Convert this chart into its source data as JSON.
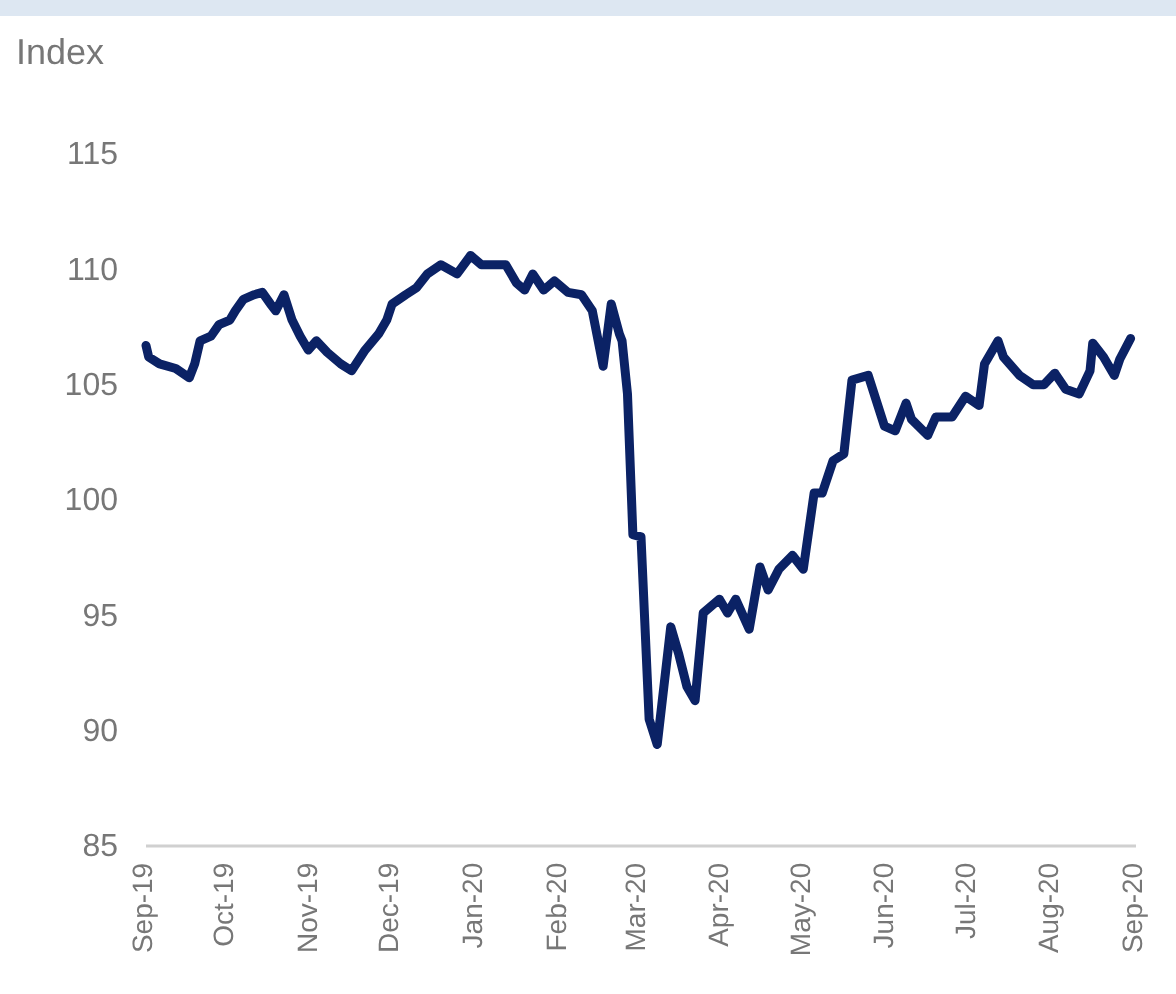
{
  "chart_data": {
    "type": "line",
    "ylabel": "Index",
    "x": [
      "2019-09-01",
      "2019-09-02",
      "2019-09-06",
      "2019-09-12",
      "2019-09-17",
      "2019-09-19",
      "2019-09-21",
      "2019-09-25",
      "2019-09-28",
      "2019-10-02",
      "2019-10-04",
      "2019-10-07",
      "2019-10-11",
      "2019-10-14",
      "2019-10-17",
      "2019-10-19",
      "2019-10-22",
      "2019-10-25",
      "2019-10-28",
      "2019-10-31",
      "2019-11-03",
      "2019-11-07",
      "2019-11-12",
      "2019-11-16",
      "2019-11-21",
      "2019-11-26",
      "2019-11-29",
      "2019-12-01",
      "2019-12-06",
      "2019-12-10",
      "2019-12-14",
      "2019-12-19",
      "2019-12-25",
      "2019-12-30",
      "2020-01-03",
      "2020-01-08",
      "2020-01-12",
      "2020-01-16",
      "2020-01-19",
      "2020-01-22",
      "2020-01-26",
      "2020-01-30",
      "2020-02-04",
      "2020-02-09",
      "2020-02-13",
      "2020-02-17",
      "2020-02-20",
      "2020-02-23",
      "2020-02-24",
      "2020-02-26",
      "2020-02-28",
      "2020-03-02",
      "2020-03-05",
      "2020-03-08",
      "2020-03-13",
      "2020-03-16",
      "2020-03-19",
      "2020-03-22",
      "2020-03-25",
      "2020-03-31",
      "2020-04-03",
      "2020-04-06",
      "2020-04-11",
      "2020-04-15",
      "2020-04-18",
      "2020-04-22",
      "2020-04-27",
      "2020-05-01",
      "2020-05-05",
      "2020-05-08",
      "2020-05-12",
      "2020-05-16",
      "2020-05-19",
      "2020-05-25",
      "2020-05-31",
      "2020-06-04",
      "2020-06-08",
      "2020-06-10",
      "2020-06-16",
      "2020-06-19",
      "2020-06-25",
      "2020-06-30",
      "2020-07-05",
      "2020-07-07",
      "2020-07-12",
      "2020-07-14",
      "2020-07-20",
      "2020-07-25",
      "2020-07-29",
      "2020-08-02",
      "2020-08-06",
      "2020-08-11",
      "2020-08-15",
      "2020-08-16",
      "2020-08-20",
      "2020-08-24",
      "2020-08-26",
      "2020-08-30"
    ],
    "series": [
      {
        "color": "#0b2265",
        "values": [
          106.7,
          106.2,
          105.9,
          105.7,
          105.3,
          105.9,
          106.9,
          107.1,
          107.6,
          107.8,
          108.2,
          108.7,
          108.9,
          109.0,
          108.5,
          108.2,
          108.9,
          107.8,
          107.1,
          106.5,
          106.9,
          106.4,
          105.9,
          105.6,
          106.5,
          107.2,
          107.8,
          108.5,
          108.9,
          109.2,
          109.8,
          110.2,
          109.8,
          110.6,
          110.2,
          110.2,
          110.2,
          109.4,
          109.1,
          109.8,
          109.1,
          109.5,
          109.0,
          108.9,
          108.2,
          105.8,
          108.5,
          107.2,
          106.9,
          104.6,
          98.5,
          98.4,
          90.5,
          89.4,
          94.5,
          93.3,
          91.9,
          91.3,
          95.1,
          95.7,
          95.1,
          95.7,
          94.4,
          97.1,
          96.1,
          97.0,
          97.6,
          97.0,
          100.3,
          100.3,
          101.7,
          102.0,
          105.2,
          105.4,
          103.2,
          103.0,
          104.2,
          103.5,
          102.8,
          103.6,
          103.6,
          104.5,
          104.1,
          105.9,
          106.9,
          106.2,
          105.4,
          105.0,
          105.0,
          105.5,
          104.8,
          104.6,
          105.6,
          106.8,
          106.2,
          105.4,
          106.1,
          107.0
        ]
      }
    ],
    "xlim": [
      "2019-09-01",
      "2020-09-01"
    ],
    "xticks": [
      {
        "value": "2019-09-01",
        "label": "Sep-19"
      },
      {
        "value": "2019-10-01",
        "label": "Oct-19"
      },
      {
        "value": "2019-11-01",
        "label": "Nov-19"
      },
      {
        "value": "2019-12-01",
        "label": "Dec-19"
      },
      {
        "value": "2020-01-01",
        "label": "Jan-20"
      },
      {
        "value": "2020-02-01",
        "label": "Feb-20"
      },
      {
        "value": "2020-03-01",
        "label": "Mar-20"
      },
      {
        "value": "2020-04-01",
        "label": "Apr-20"
      },
      {
        "value": "2020-05-01",
        "label": "May-20"
      },
      {
        "value": "2020-06-01",
        "label": "Jun-20"
      },
      {
        "value": "2020-07-01",
        "label": "Jul-20"
      },
      {
        "value": "2020-08-01",
        "label": "Aug-20"
      },
      {
        "value": "2020-09-01",
        "label": "Sep-20"
      }
    ],
    "ylim": [
      85,
      115
    ],
    "yticks": [
      85,
      90,
      95,
      100,
      105,
      110,
      115
    ],
    "grid": false
  }
}
